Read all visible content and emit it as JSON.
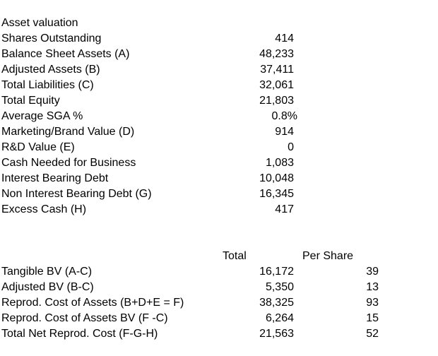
{
  "title": "Asset valuation",
  "asset_rows": [
    {
      "label": "Shares Outstanding",
      "value": "414"
    },
    {
      "label": "Balance Sheet Assets  (A)",
      "value": "48,233"
    },
    {
      "label": "Adjusted Assets  (B)",
      "value": "37,411"
    },
    {
      "label": "Total Liabilities (C)",
      "value": "32,061"
    },
    {
      "label": "Total Equity",
      "value": "21,803"
    },
    {
      "label": "Average SGA %",
      "value": "0.8%"
    },
    {
      "label": "Marketing/Brand Value  (D)",
      "value": "914"
    },
    {
      "label": "R&D Value  (E)",
      "value": "0"
    },
    {
      "label": "Cash Needed for Business",
      "value": "1,083"
    },
    {
      "label": "Interest Bearing Debt",
      "value": "10,048"
    },
    {
      "label": "Non Interest Bearing Debt  (G)",
      "value": "16,345"
    },
    {
      "label": "Excess Cash  (H)",
      "value": "417"
    }
  ],
  "summary": {
    "headers": {
      "total": "Total",
      "per_share": "Per Share"
    },
    "rows": [
      {
        "label": "Tangible BV (A-C)",
        "total": "16,172",
        "per_share": "39"
      },
      {
        "label": "Adjusted BV (B-C)",
        "total": "5,350",
        "per_share": "13"
      },
      {
        "label": "Reprod. Cost of Assets (B+D+E = F)",
        "total": "38,325",
        "per_share": "93"
      },
      {
        "label": "Reprod. Cost of Assets BV (F -C)",
        "total": "6,264",
        "per_share": "15"
      },
      {
        "label": "Total Net Reprod. Cost (F-G-H)",
        "total": "21,563",
        "per_share": "52"
      }
    ]
  }
}
